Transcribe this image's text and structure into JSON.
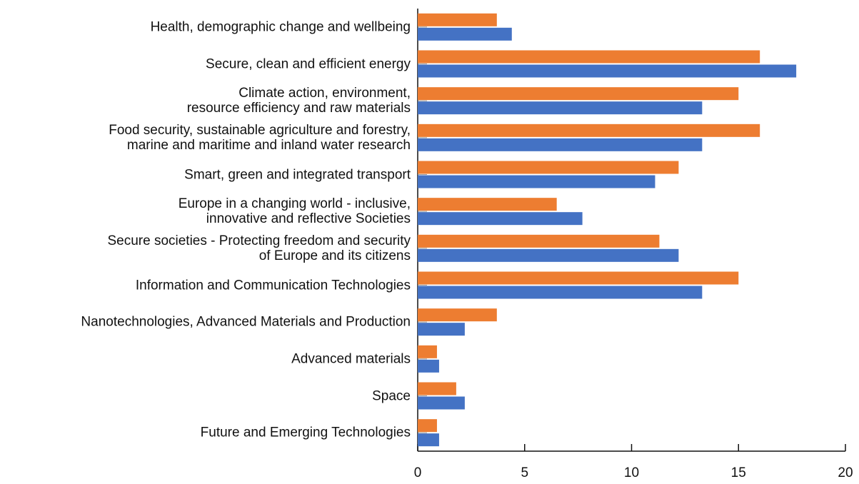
{
  "chart_data": {
    "type": "bar",
    "orientation": "horizontal",
    "categories": [
      "Health, demographic change and wellbeing",
      "Secure, clean and efficient energy",
      "Climate action, environment,\nresource efficiency and raw materials",
      "Food security, sustainable agriculture and forestry,\nmarine and maritime and inland water research",
      "Smart, green and integrated transport",
      "Europe in a changing world - inclusive,\ninnovative and reflective Societies",
      "Secure societies - Protecting freedom and security\nof Europe and its citizens",
      "Information and Communication Technologies",
      "Nanotechnologies, Advanced Materials and Production",
      "Advanced materials",
      "Space",
      "Future and Emerging Technologies"
    ],
    "series": [
      {
        "color": "#ed7d31",
        "values": [
          3.7,
          16.0,
          15.0,
          16.0,
          12.2,
          6.5,
          11.3,
          15.0,
          3.7,
          0.9,
          1.8,
          0.9
        ]
      },
      {
        "color": "#4472c4",
        "values": [
          4.4,
          17.7,
          13.3,
          13.3,
          11.1,
          7.7,
          12.2,
          13.3,
          2.2,
          1.0,
          2.2,
          1.0
        ]
      }
    ],
    "xlim": [
      0,
      20
    ],
    "xticks": [
      0,
      5,
      10,
      15,
      20
    ]
  }
}
